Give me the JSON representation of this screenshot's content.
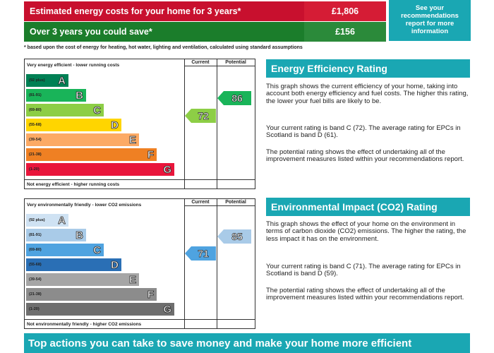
{
  "costs": {
    "estimated_label": "Estimated energy costs for your home for 3 years*",
    "estimated_value": "£1,806",
    "save_label": "Over 3 years you could save*",
    "save_value": "£156",
    "see_recommendations": "See your recommendations report for more information",
    "footnote": "* based upon the cost of energy for heating, hot water, lighting and ventilation, calculated using standard assumptions"
  },
  "energy_chart": {
    "top_label": "Very energy efficient - lower running costs",
    "bottom_label": "Not energy efficient - higher running costs",
    "current_header": "Current",
    "potential_header": "Potential",
    "bands": [
      {
        "range": "(92 plus)",
        "letter": "A",
        "color": "#008054"
      },
      {
        "range": "(81-91)",
        "letter": "B",
        "color": "#19b459"
      },
      {
        "range": "(69-80)",
        "letter": "C",
        "color": "#8dce46"
      },
      {
        "range": "(55-68)",
        "letter": "D",
        "color": "#ffd500"
      },
      {
        "range": "(39-54)",
        "letter": "E",
        "color": "#fcaa65"
      },
      {
        "range": "(21-38)",
        "letter": "F",
        "color": "#ef8023"
      },
      {
        "range": "(1-20)",
        "letter": "G",
        "color": "#e9153b"
      }
    ],
    "current_value": "72",
    "current_color": "#8dce46",
    "potential_value": "86",
    "potential_color": "#19b459"
  },
  "env_chart": {
    "top_label": "Very environmentally friendly - lower CO2 emissions",
    "bottom_label": "Not environmentally friendly - higher CO2 emissions",
    "current_header": "Current",
    "potential_header": "Potential",
    "bands": [
      {
        "range": "(92 plus)",
        "letter": "A",
        "color": "#cfe2f3"
      },
      {
        "range": "(81-91)",
        "letter": "B",
        "color": "#a9cbe8"
      },
      {
        "range": "(69-80)",
        "letter": "C",
        "color": "#4fa3e0"
      },
      {
        "range": "(55-68)",
        "letter": "D",
        "color": "#2a6fb5"
      },
      {
        "range": "(39-54)",
        "letter": "E",
        "color": "#a6a6a6"
      },
      {
        "range": "(21-38)",
        "letter": "F",
        "color": "#8c8c8c"
      },
      {
        "range": "(1-20)",
        "letter": "G",
        "color": "#6e6e6e"
      }
    ],
    "current_value": "71",
    "current_color": "#4fa3e0",
    "potential_value": "85",
    "potential_color": "#a9cbe8"
  },
  "energy_section": {
    "title": "Energy Efficiency Rating",
    "p1": "This graph shows the current efficiency of your home, taking into account both energy efficiency and fuel costs. The higher this rating, the lower your fuel bills are likely to be.",
    "p2": "Your current rating is band C (72). The average rating for EPCs in Scotland is band D (61).",
    "p3": "The potential rating shows the effect of undertaking all of the improvement measures listed within your recommendations report."
  },
  "env_section": {
    "title": "Environmental Impact (CO2) Rating",
    "p1": "This graph shows the effect of your home on the environment in terms of carbon dioxide (CO2) emissions. The higher the rating, the less impact it has on the environment.",
    "p2": "Your current rating is band C (71). The average rating for EPCs in Scotland is band D (59).",
    "p3": "The potential rating shows the effect of undertaking all of the improvement measures listed within your recommendations report."
  },
  "bottom_banner": "Top actions you can take to save money and make your home more efficient"
}
